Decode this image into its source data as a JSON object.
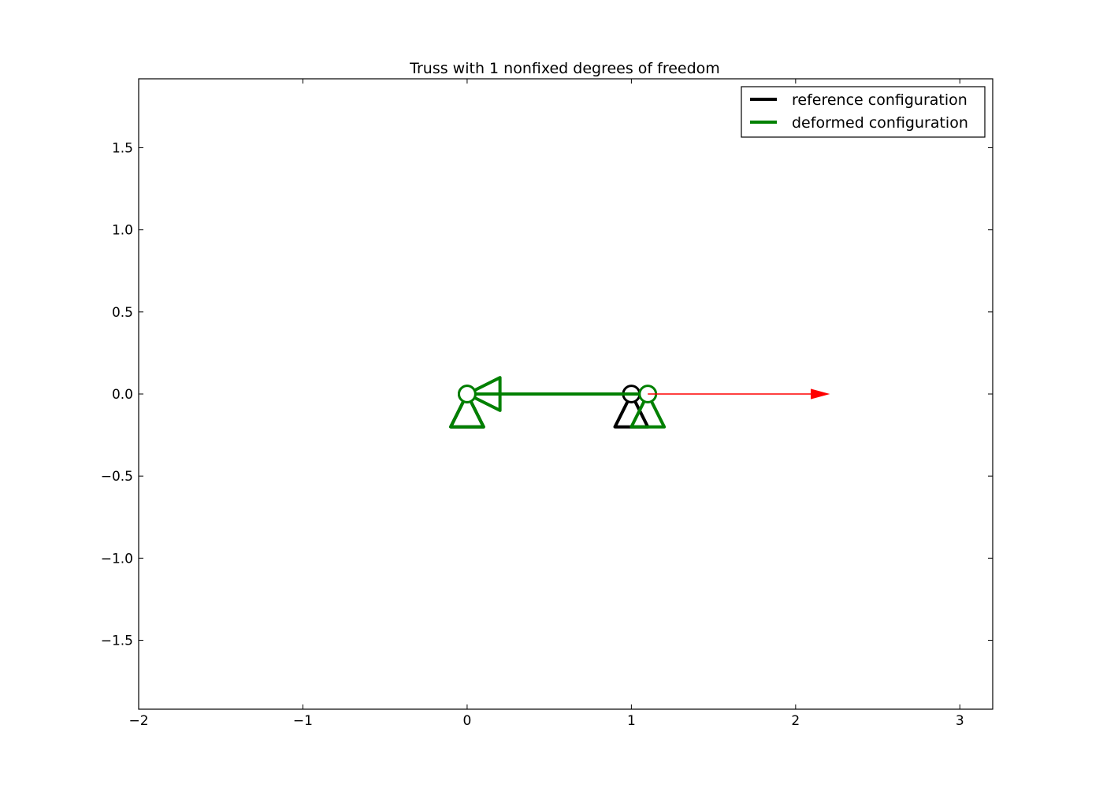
{
  "chart_data": {
    "type": "line",
    "title": "Truss with 1 nonfixed degrees of freedom",
    "xlabel": "",
    "ylabel": "",
    "xlim": [
      -2,
      3.2
    ],
    "ylim": [
      -1.92,
      1.92
    ],
    "x_ticks": [
      -2,
      -1,
      0,
      1,
      2,
      3
    ],
    "x_tick_labels": [
      "−2",
      "−1",
      "0",
      "1",
      "2",
      "3"
    ],
    "y_ticks": [
      1.5,
      1.0,
      0.5,
      0.0,
      -0.5,
      -1.0,
      -1.5
    ],
    "y_tick_labels": [
      "1.5",
      "1.0",
      "0.5",
      "0.0",
      "−0.5",
      "−1.0",
      "−1.5"
    ],
    "grid": false,
    "legend_position": "top-right",
    "series": [
      {
        "name": "reference configuration",
        "color": "#000000",
        "nodes": [
          {
            "x": 0.0,
            "y": 0.0
          },
          {
            "x": 1.0,
            "y": 0.0
          }
        ],
        "supports": [
          {
            "x": 0.0,
            "y": 0.0,
            "type": "pin-triangle"
          },
          {
            "x": 1.0,
            "y": 0.0,
            "type": "pin-triangle"
          }
        ],
        "members": [
          [
            0,
            1
          ]
        ]
      },
      {
        "name": "deformed configuration",
        "color": "#008000",
        "nodes": [
          {
            "x": 0.0,
            "y": 0.0
          },
          {
            "x": 1.1,
            "y": 0.0
          }
        ],
        "supports": [
          {
            "x": 0.0,
            "y": 0.0,
            "type": "pin-triangle"
          },
          {
            "x": 1.1,
            "y": 0.0,
            "type": "pin-triangle"
          },
          {
            "x": 0.0,
            "y": 0.0,
            "type": "roller-triangle-horizontal"
          }
        ],
        "members": [
          [
            0,
            1
          ]
        ]
      }
    ],
    "forces": [
      {
        "x": 1.1,
        "y": 0.0,
        "dx": 1.1,
        "dy": 0.0,
        "color": "#ff0000"
      }
    ]
  }
}
